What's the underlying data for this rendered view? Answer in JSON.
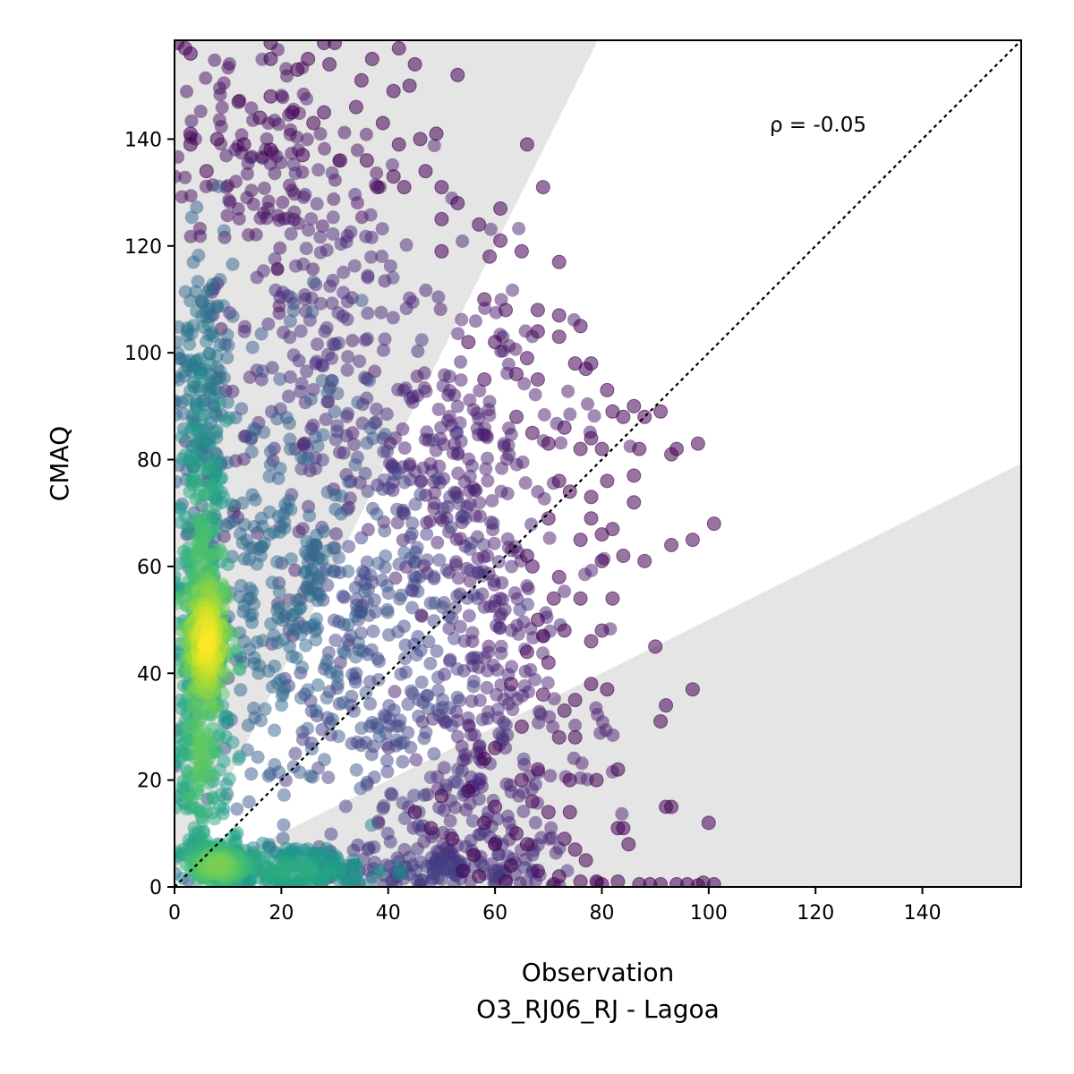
{
  "chart_data": {
    "type": "scatter",
    "title": "",
    "xlabel": "Observation",
    "xlabel_sub": "O3_RJ06_RJ - Lagoa",
    "ylabel": "CMAQ",
    "xlim": [
      0,
      158.5
    ],
    "ylim": [
      0,
      158.5
    ],
    "xticks": [
      0,
      20,
      40,
      60,
      80,
      100,
      120,
      140
    ],
    "yticks": [
      0,
      20,
      40,
      60,
      80,
      100,
      120,
      140
    ],
    "xtick_labels": [
      "0",
      "20",
      "40",
      "60",
      "80",
      "100",
      "120",
      "140"
    ],
    "ytick_labels": [
      "0",
      "20",
      "40",
      "60",
      "80",
      "100",
      "120",
      "140"
    ],
    "annotation": "ρ = -0.05",
    "grid": false,
    "colormap": "viridis",
    "colors": {
      "low_density": "#440154",
      "mid_density": "#31688e",
      "high_density": "#fde725",
      "band": "#e5e5e5",
      "reference_line": "#000000"
    },
    "reference_line": {
      "slope": 1,
      "style": "dotted"
    },
    "shaded_bands": [
      {
        "name": "upper",
        "slope_lower": 2,
        "slope_upper": "inf"
      },
      {
        "name": "lower",
        "slope_lower": 0,
        "slope_upper": 0.5
      }
    ],
    "density_clusters": [
      {
        "x": 6,
        "y": 46,
        "sx": 2.2,
        "sy": 7,
        "n": 260,
        "w": 1.0
      },
      {
        "x": 5,
        "y": 60,
        "sx": 2.4,
        "sy": 14,
        "n": 220,
        "w": 0.72
      },
      {
        "x": 5,
        "y": 26,
        "sx": 2.4,
        "sy": 11,
        "n": 200,
        "w": 0.75
      },
      {
        "x": 8,
        "y": 4,
        "sx": 4,
        "sy": 2.5,
        "n": 200,
        "w": 0.8
      },
      {
        "x": 22,
        "y": 3,
        "sx": 9,
        "sy": 2.5,
        "n": 240,
        "w": 0.62
      },
      {
        "x": 5,
        "y": 95,
        "sx": 3,
        "sy": 14,
        "n": 180,
        "w": 0.42
      },
      {
        "x": 20,
        "y": 55,
        "sx": 10,
        "sy": 22,
        "n": 320,
        "w": 0.36
      },
      {
        "x": 40,
        "y": 45,
        "sx": 10,
        "sy": 24,
        "n": 300,
        "w": 0.22
      },
      {
        "x": 30,
        "y": 100,
        "sx": 12,
        "sy": 20,
        "n": 200,
        "w": 0.12
      },
      {
        "x": 48,
        "y": 3,
        "sx": 12,
        "sy": 2.5,
        "n": 140,
        "w": 0.18
      },
      {
        "x": 15,
        "y": 135,
        "sx": 10,
        "sy": 12,
        "n": 130,
        "w": 0.04
      },
      {
        "x": 55,
        "y": 80,
        "sx": 10,
        "sy": 14,
        "n": 170,
        "w": 0.08
      },
      {
        "x": 60,
        "y": 40,
        "sx": 9,
        "sy": 16,
        "n": 150,
        "w": 0.1
      },
      {
        "x": 60,
        "y": 12,
        "sx": 10,
        "sy": 9,
        "n": 110,
        "w": 0.12
      }
    ],
    "outlier_points": [
      [
        0.5,
        158
      ],
      [
        2,
        157
      ],
      [
        3,
        156
      ],
      [
        18,
        158
      ],
      [
        28,
        158
      ],
      [
        30,
        158
      ],
      [
        42,
        157
      ],
      [
        18,
        155
      ],
      [
        25,
        155
      ],
      [
        29,
        154
      ],
      [
        37,
        155
      ],
      [
        45,
        154
      ],
      [
        53,
        152
      ],
      [
        23,
        153
      ],
      [
        35,
        151
      ],
      [
        41,
        149
      ],
      [
        44,
        150
      ],
      [
        18,
        148
      ],
      [
        12,
        147
      ],
      [
        16,
        144
      ],
      [
        22,
        145
      ],
      [
        28,
        145
      ],
      [
        34,
        146
      ],
      [
        39,
        143
      ],
      [
        26,
        143
      ],
      [
        46,
        140
      ],
      [
        49,
        141
      ],
      [
        42,
        139
      ],
      [
        66,
        139
      ],
      [
        8,
        140
      ],
      [
        3,
        139
      ],
      [
        3,
        141
      ],
      [
        6,
        134
      ],
      [
        13,
        139
      ],
      [
        18,
        138
      ],
      [
        24,
        137
      ],
      [
        31,
        136
      ],
      [
        36,
        136
      ],
      [
        38,
        131
      ],
      [
        41,
        133
      ],
      [
        47,
        134
      ],
      [
        43,
        131
      ],
      [
        50,
        131
      ],
      [
        53,
        128
      ],
      [
        50,
        125
      ],
      [
        57,
        124
      ],
      [
        61,
        127
      ],
      [
        69,
        131
      ],
      [
        61,
        121
      ],
      [
        72,
        117
      ],
      [
        65,
        119
      ],
      [
        59,
        118
      ],
      [
        50,
        119
      ],
      [
        58,
        110
      ],
      [
        62,
        108
      ],
      [
        68,
        108
      ],
      [
        72,
        107
      ],
      [
        68,
        104
      ],
      [
        76,
        105
      ],
      [
        66,
        99
      ],
      [
        72,
        103
      ],
      [
        75,
        98
      ],
      [
        77,
        97
      ],
      [
        60,
        102
      ],
      [
        55,
        102
      ],
      [
        64,
        96
      ],
      [
        68,
        95
      ],
      [
        78,
        98
      ],
      [
        58,
        95
      ],
      [
        81,
        93
      ],
      [
        82,
        89
      ],
      [
        84,
        88
      ],
      [
        86,
        90
      ],
      [
        88,
        88
      ],
      [
        91,
        89
      ],
      [
        93,
        81
      ],
      [
        94,
        82
      ],
      [
        98,
        83
      ],
      [
        64,
        88
      ],
      [
        67,
        85
      ],
      [
        70,
        83
      ],
      [
        73,
        86
      ],
      [
        78,
        84
      ],
      [
        80,
        82
      ],
      [
        76,
        82
      ],
      [
        87,
        82
      ],
      [
        72,
        76
      ],
      [
        74,
        74
      ],
      [
        78,
        73
      ],
      [
        81,
        76
      ],
      [
        86,
        77
      ],
      [
        70,
        69
      ],
      [
        78,
        69
      ],
      [
        82,
        67
      ],
      [
        86,
        72
      ],
      [
        101,
        68
      ],
      [
        97,
        65
      ],
      [
        93,
        64
      ],
      [
        88,
        61
      ],
      [
        84,
        62
      ],
      [
        80,
        66
      ],
      [
        76,
        65
      ],
      [
        80,
        61
      ],
      [
        72,
        58
      ],
      [
        66,
        62
      ],
      [
        67,
        60
      ],
      [
        71,
        54
      ],
      [
        76,
        54
      ],
      [
        82,
        54
      ],
      [
        68,
        50
      ],
      [
        73,
        48
      ],
      [
        69,
        47
      ],
      [
        80,
        48
      ],
      [
        78,
        46
      ],
      [
        90,
        45
      ],
      [
        66,
        44
      ],
      [
        70,
        42
      ],
      [
        63,
        38
      ],
      [
        69,
        36
      ],
      [
        75,
        35
      ],
      [
        78,
        38
      ],
      [
        81,
        37
      ],
      [
        97,
        37
      ],
      [
        92,
        34
      ],
      [
        91,
        31
      ],
      [
        65,
        30
      ],
      [
        73,
        33
      ],
      [
        72,
        28
      ],
      [
        75,
        28
      ],
      [
        83,
        22
      ],
      [
        60,
        26
      ],
      [
        58,
        24
      ],
      [
        65,
        20
      ],
      [
        68,
        22
      ],
      [
        74,
        20
      ],
      [
        79,
        20
      ],
      [
        55,
        18
      ],
      [
        60,
        15
      ],
      [
        67,
        16
      ],
      [
        70,
        14
      ],
      [
        74,
        14
      ],
      [
        92,
        15
      ],
      [
        93,
        15
      ],
      [
        100,
        12
      ],
      [
        83,
        11
      ],
      [
        84,
        11
      ],
      [
        85,
        8
      ],
      [
        64,
        10
      ],
      [
        66,
        8
      ],
      [
        73,
        9
      ],
      [
        75,
        7
      ],
      [
        77,
        5
      ],
      [
        63,
        4
      ],
      [
        68,
        3
      ],
      [
        72,
        2
      ],
      [
        79,
        1
      ],
      [
        83,
        1
      ],
      [
        87,
        0.5
      ],
      [
        89,
        0.5
      ],
      [
        91,
        0.5
      ],
      [
        94,
        0.5
      ],
      [
        96,
        0.5
      ],
      [
        99,
        0.8
      ],
      [
        101,
        0.5
      ],
      [
        98,
        0.3
      ],
      [
        80,
        0.5
      ],
      [
        76,
        1
      ],
      [
        71,
        0.5
      ],
      [
        62,
        1
      ],
      [
        57,
        2
      ],
      [
        54,
        3
      ],
      [
        56,
        6
      ],
      [
        52,
        9
      ],
      [
        48,
        11
      ],
      [
        45,
        14
      ],
      [
        50,
        17
      ],
      [
        58,
        12
      ],
      [
        60,
        8
      ]
    ]
  }
}
